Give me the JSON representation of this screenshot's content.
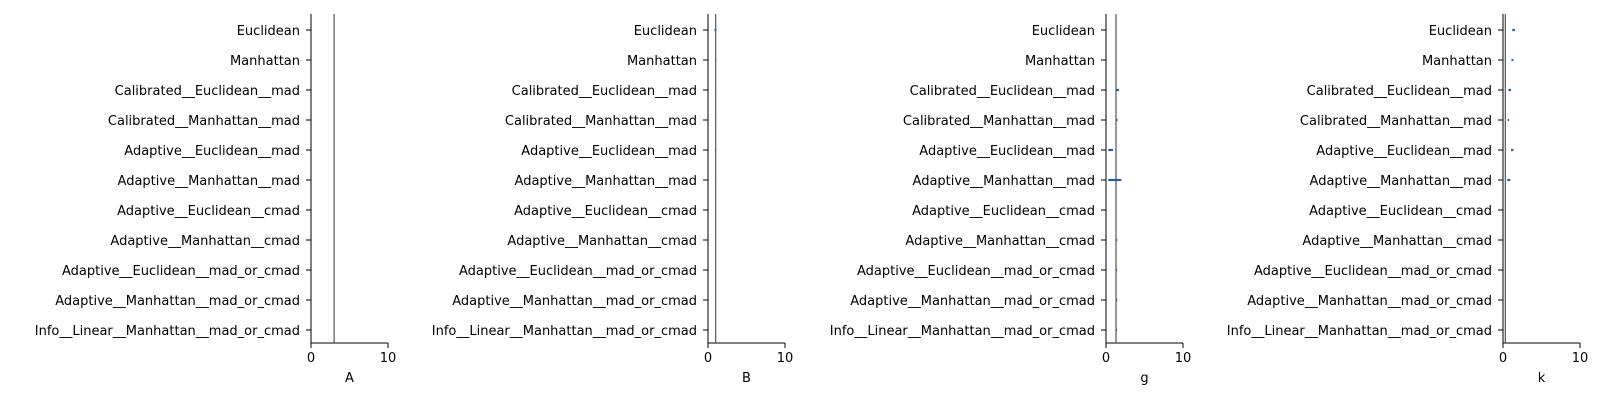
{
  "chart_data": [
    {
      "type": "forest",
      "xlabel": "A",
      "xlim": [
        0,
        10
      ],
      "xticks": [
        0,
        10
      ],
      "reference_line": 3.0,
      "categories": [
        "Euclidean",
        "Manhattan",
        "Calibrated__Euclidean__mad",
        "Calibrated__Manhattan__mad",
        "Adaptive__Euclidean__mad",
        "Adaptive__Manhattan__mad",
        "Adaptive__Euclidean__cmad",
        "Adaptive__Manhattan__cmad",
        "Adaptive__Euclidean__mad_or_cmad",
        "Adaptive__Manhattan__mad_or_cmad",
        "Info__Linear__Manhattan__mad_or_cmad"
      ],
      "intervals": [
        [
          3.0,
          3.0
        ],
        [
          3.0,
          3.0
        ],
        [
          3.0,
          3.0
        ],
        [
          3.0,
          3.0
        ],
        [
          3.0,
          3.0
        ],
        [
          3.0,
          3.0
        ],
        [
          3.0,
          3.0
        ],
        [
          3.0,
          3.0
        ],
        [
          3.0,
          3.0
        ],
        [
          3.0,
          3.0
        ],
        [
          3.0,
          3.0
        ]
      ]
    },
    {
      "type": "forest",
      "xlabel": "B",
      "xlim": [
        0,
        10
      ],
      "xticks": [
        0,
        10
      ],
      "reference_line": 1.0,
      "categories": [
        "Euclidean",
        "Manhattan",
        "Calibrated__Euclidean__mad",
        "Calibrated__Manhattan__mad",
        "Adaptive__Euclidean__mad",
        "Adaptive__Manhattan__mad",
        "Adaptive__Euclidean__cmad",
        "Adaptive__Manhattan__cmad",
        "Adaptive__Euclidean__mad_or_cmad",
        "Adaptive__Manhattan__mad_or_cmad",
        "Info__Linear__Manhattan__mad_or_cmad"
      ],
      "intervals": [
        [
          0.85,
          1.1
        ],
        [
          0.9,
          1.05
        ],
        [
          0.95,
          1.02
        ],
        [
          0.95,
          1.02
        ],
        [
          0.9,
          1.05
        ],
        [
          0.95,
          1.02
        ],
        [
          1.0,
          1.0
        ],
        [
          1.0,
          1.0
        ],
        [
          1.0,
          1.0
        ],
        [
          1.0,
          1.0
        ],
        [
          1.0,
          1.0
        ]
      ]
    },
    {
      "type": "forest",
      "xlabel": "g",
      "xlim": [
        0,
        10
      ],
      "xticks": [
        0,
        10
      ],
      "reference_line": 1.3,
      "categories": [
        "Euclidean",
        "Manhattan",
        "Calibrated__Euclidean__mad",
        "Calibrated__Manhattan__mad",
        "Adaptive__Euclidean__mad",
        "Adaptive__Manhattan__mad",
        "Adaptive__Euclidean__cmad",
        "Adaptive__Manhattan__cmad",
        "Adaptive__Euclidean__mad_or_cmad",
        "Adaptive__Manhattan__mad_or_cmad",
        "Info__Linear__Manhattan__mad_or_cmad"
      ],
      "intervals": [
        [
          1.3,
          1.3
        ],
        [
          1.3,
          1.3
        ],
        [
          1.3,
          1.7
        ],
        [
          1.3,
          1.5
        ],
        [
          0.3,
          0.9
        ],
        [
          0.3,
          2.0
        ],
        [
          1.3,
          1.3
        ],
        [
          1.3,
          1.45
        ],
        [
          1.3,
          1.45
        ],
        [
          1.3,
          1.45
        ],
        [
          1.3,
          1.45
        ]
      ]
    },
    {
      "type": "forest",
      "xlabel": "k",
      "xlim": [
        0,
        10
      ],
      "xticks": [
        0,
        10
      ],
      "reference_line": 0.3,
      "categories": [
        "Euclidean",
        "Manhattan",
        "Calibrated__Euclidean__mad",
        "Calibrated__Manhattan__mad",
        "Adaptive__Euclidean__mad",
        "Adaptive__Manhattan__mad",
        "Adaptive__Euclidean__cmad",
        "Adaptive__Manhattan__cmad",
        "Adaptive__Euclidean__mad_or_cmad",
        "Adaptive__Manhattan__mad_or_cmad",
        "Info__Linear__Manhattan__mad_or_cmad"
      ],
      "intervals": [
        [
          1.2,
          1.55
        ],
        [
          1.1,
          1.35
        ],
        [
          0.7,
          1.05
        ],
        [
          0.6,
          0.8
        ],
        [
          1.05,
          1.35
        ],
        [
          0.55,
          0.95
        ],
        [
          0.3,
          0.3
        ],
        [
          0.3,
          0.3
        ],
        [
          0.3,
          0.3
        ],
        [
          0.3,
          0.3
        ],
        [
          0.3,
          0.3
        ]
      ]
    }
  ],
  "colors": {
    "interval": "#1f5fa8",
    "reference_line": "#555555",
    "axis": "#000000"
  }
}
